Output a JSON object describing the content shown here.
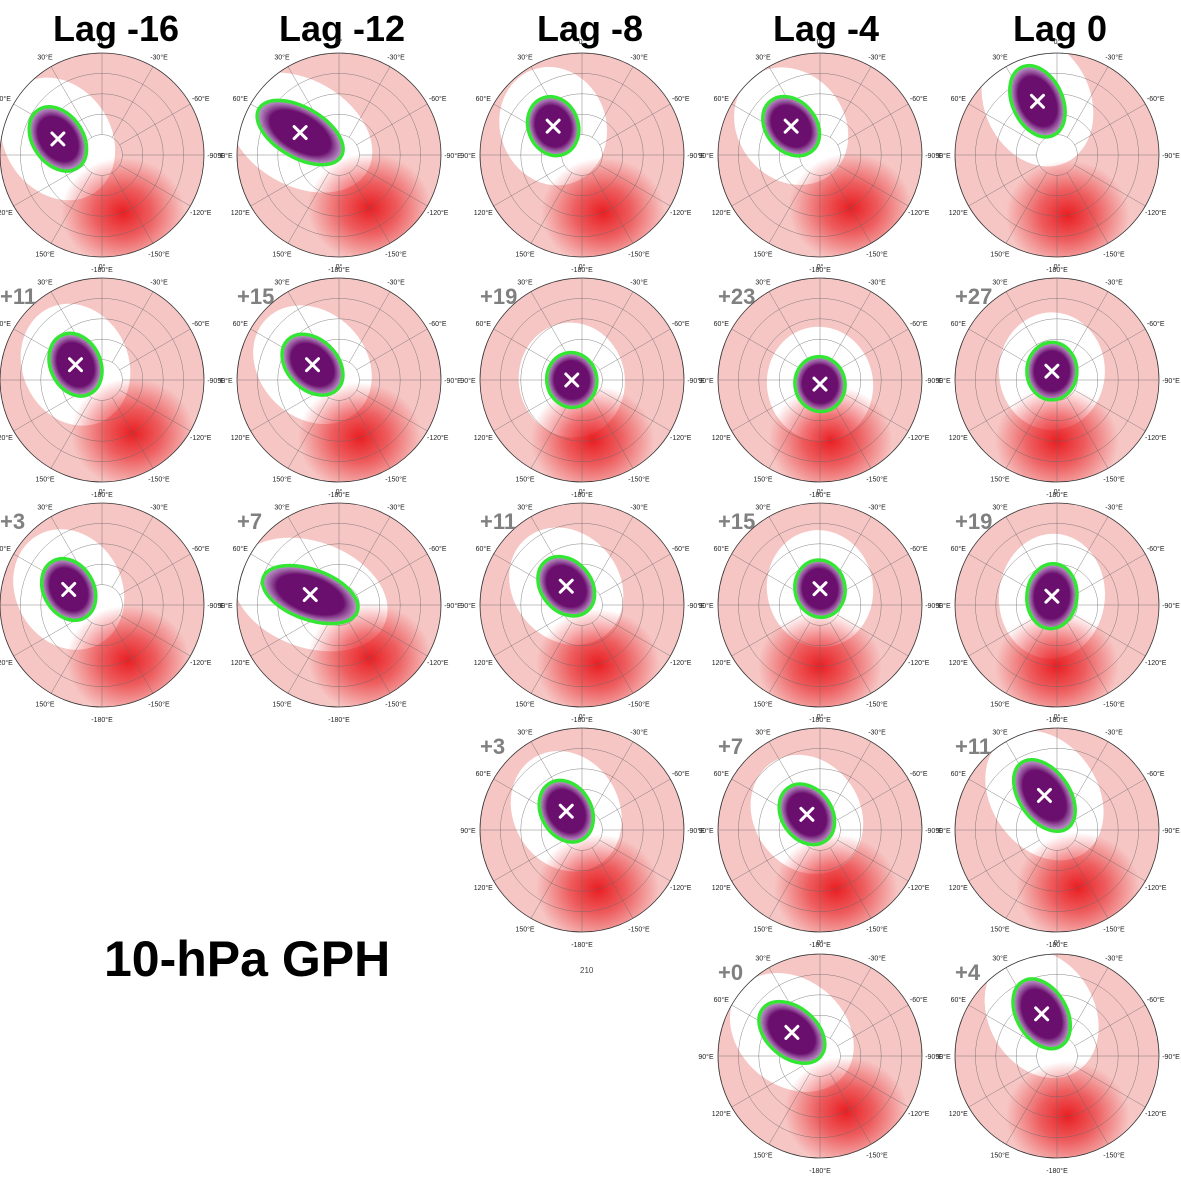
{
  "column_headers": [
    "Lag -16",
    "Lag -12",
    "Lag -8",
    "Lag -4",
    "Lag 0"
  ],
  "title": "10-hPa GPH",
  "lon_labels": {
    "deg0": "0°",
    "w30": "-30°E",
    "w60": "-60°E",
    "w90": "-90°E",
    "w120": "-120°E",
    "w150": "-150°E",
    "e180": "-180°E",
    "e150": "150°E",
    "e120": "120°E",
    "e90": "90°E",
    "e60": "60°E",
    "e30": "30°E"
  },
  "stray_label": "210",
  "colors": {
    "positive_anomaly": "#e8161a",
    "negative_anomaly": "#6b0f6e",
    "vortex_contour": "#33e633",
    "center_marker": "#ffffff"
  },
  "panels": [
    {
      "row": 1,
      "col": 1,
      "lag_label": "",
      "vortex": {
        "lat": 67,
        "lon": 70,
        "tilt": -35,
        "elong": 1.4
      },
      "warm_center_lon": -160
    },
    {
      "row": 1,
      "col": 2,
      "lag_label": "",
      "vortex": {
        "lat": 68,
        "lon": 60,
        "tilt": -60,
        "elong": 1.9
      },
      "warm_center_lon": -150
    },
    {
      "row": 1,
      "col": 3,
      "lag_label": "",
      "vortex": {
        "lat": 70,
        "lon": 45,
        "tilt": -20,
        "elong": 1.2
      },
      "warm_center_lon": -160
    },
    {
      "row": 1,
      "col": 4,
      "lag_label": "",
      "vortex": {
        "lat": 70,
        "lon": 45,
        "tilt": -40,
        "elong": 1.3
      },
      "warm_center_lon": -150
    },
    {
      "row": 1,
      "col": 5,
      "lag_label": "",
      "vortex": {
        "lat": 62,
        "lon": 20,
        "tilt": -25,
        "elong": 1.5
      },
      "warm_center_lon": -170
    },
    {
      "row": 2,
      "col": 1,
      "lag_label": "+11",
      "vortex": {
        "lat": 75,
        "lon": 60,
        "tilt": -25,
        "elong": 1.3
      },
      "warm_center_lon": -150
    },
    {
      "row": 2,
      "col": 2,
      "lag_label": "+15",
      "vortex": {
        "lat": 75,
        "lon": 60,
        "tilt": -45,
        "elong": 1.4
      },
      "warm_center_lon": -160
    },
    {
      "row": 2,
      "col": 3,
      "lag_label": "+19",
      "vortex": {
        "lat": 85,
        "lon": 90,
        "tilt": -10,
        "elong": 1.1
      },
      "warm_center_lon": -170
    },
    {
      "row": 2,
      "col": 4,
      "lag_label": "+23",
      "vortex": {
        "lat": 88,
        "lon": 180,
        "tilt": -10,
        "elong": 1.1
      },
      "warm_center_lon": -170
    },
    {
      "row": 2,
      "col": 5,
      "lag_label": "+27",
      "vortex": {
        "lat": 85,
        "lon": 30,
        "tilt": 0,
        "elong": 1.15
      },
      "warm_center_lon": 180
    },
    {
      "row": 3,
      "col": 1,
      "lag_label": "+3",
      "vortex": {
        "lat": 72,
        "lon": 65,
        "tilt": -30,
        "elong": 1.3
      },
      "warm_center_lon": -155
    },
    {
      "row": 3,
      "col": 2,
      "lag_label": "+7",
      "vortex": {
        "lat": 75,
        "lon": 70,
        "tilt": -70,
        "elong": 2.0
      },
      "warm_center_lon": -150
    },
    {
      "row": 3,
      "col": 3,
      "lag_label": "+11",
      "vortex": {
        "lat": 78,
        "lon": 40,
        "tilt": -40,
        "elong": 1.3
      },
      "warm_center_lon": -165
    },
    {
      "row": 3,
      "col": 4,
      "lag_label": "+15",
      "vortex": {
        "lat": 82,
        "lon": 0,
        "tilt": -10,
        "elong": 1.15
      },
      "warm_center_lon": 180
    },
    {
      "row": 3,
      "col": 5,
      "lag_label": "+19",
      "vortex": {
        "lat": 85,
        "lon": 30,
        "tilt": 5,
        "elong": 1.3
      },
      "warm_center_lon": 180
    },
    {
      "row": 4,
      "col": 3,
      "lag_label": "+3",
      "vortex": {
        "lat": 78,
        "lon": 40,
        "tilt": -30,
        "elong": 1.3
      },
      "warm_center_lon": -165
    },
    {
      "row": 4,
      "col": 4,
      "lag_label": "+7",
      "vortex": {
        "lat": 80,
        "lon": 40,
        "tilt": -35,
        "elong": 1.3
      },
      "warm_center_lon": -165
    },
    {
      "row": 4,
      "col": 5,
      "lag_label": "+11",
      "vortex": {
        "lat": 72,
        "lon": 20,
        "tilt": -35,
        "elong": 1.6
      },
      "warm_center_lon": -160
    },
    {
      "row": 5,
      "col": 4,
      "lag_label": "+0",
      "vortex": {
        "lat": 72,
        "lon": 50,
        "tilt": -50,
        "elong": 1.5
      },
      "warm_center_lon": -155
    },
    {
      "row": 5,
      "col": 5,
      "lag_label": "+4",
      "vortex": {
        "lat": 68,
        "lon": 20,
        "tilt": -30,
        "elong": 1.5
      },
      "warm_center_lon": -170
    }
  ]
}
